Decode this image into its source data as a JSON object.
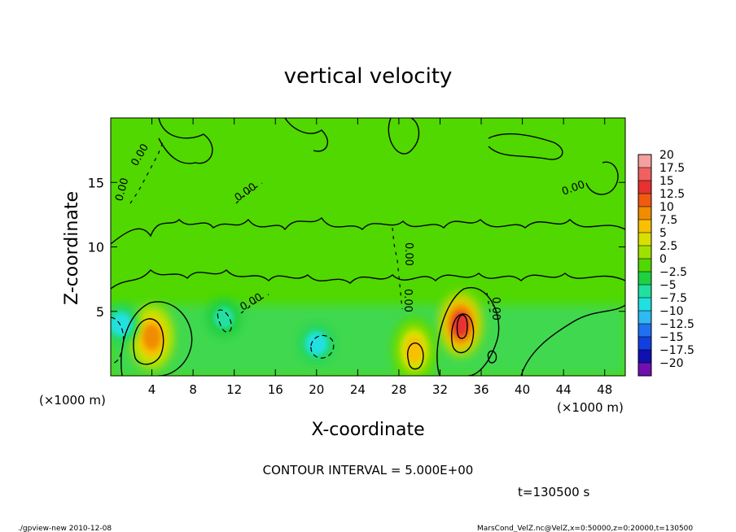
{
  "chart_data": {
    "type": "heatmap",
    "title": "vertical velocity",
    "xlabel": "X-coordinate",
    "ylabel": "Z-coordinate",
    "x_unit_left": "(×1000 m)",
    "x_unit_right": "(×1000 m)",
    "xlim": [
      0,
      50
    ],
    "ylim": [
      0,
      20
    ],
    "x_ticks": [
      "4",
      "8",
      "12",
      "16",
      "20",
      "24",
      "28",
      "32",
      "36",
      "40",
      "44",
      "48"
    ],
    "y_ticks": [
      "5",
      "10",
      "15"
    ],
    "contour_interval": "CONTOUR INTERVAL = 5.000E+00",
    "contour_labels": [
      "0.00",
      "0.00",
      "0.00",
      "0.00",
      "0.00",
      "0.00",
      "0.00",
      "0.00"
    ],
    "colorbar": {
      "levels": [
        "20",
        "17.5",
        "15",
        "12.5",
        "10",
        "7.5",
        "5",
        "2.5",
        "0",
        "-2.5",
        "-5",
        "-7.5",
        "-10",
        "-12.5",
        "-15",
        "-17.5",
        "-20"
      ],
      "colors": [
        "#f4a0a0",
        "#f06060",
        "#e83030",
        "#f05a10",
        "#f08c00",
        "#f8c000",
        "#d8e000",
        "#a0e000",
        "#50d800",
        "#20d040",
        "#20e0a0",
        "#20e0e0",
        "#30b8f0",
        "#2070f0",
        "#1040e0",
        "#1010b0",
        "#7010b0"
      ]
    },
    "features": [
      {
        "kind": "updraft",
        "x": 4,
        "z": 3,
        "max": 10
      },
      {
        "kind": "updraft",
        "x": 34,
        "z": 4,
        "max": 15
      },
      {
        "kind": "updraft",
        "x": 29.5,
        "z": 2,
        "max": 7.5
      },
      {
        "kind": "downdraft",
        "x": 1,
        "z": 4,
        "min": -7.5
      },
      {
        "kind": "downdraft",
        "x": 20,
        "z": 2.5,
        "min": -7.5
      },
      {
        "kind": "downdraft",
        "x": 11,
        "z": 4.5,
        "min": -5
      }
    ]
  },
  "time_label": "t=130500 s",
  "footer_left": "./gpview-new  2010-12-08",
  "footer_right": "MarsCond_VelZ.nc@VelZ,x=0:50000,z=0:20000,t=130500"
}
